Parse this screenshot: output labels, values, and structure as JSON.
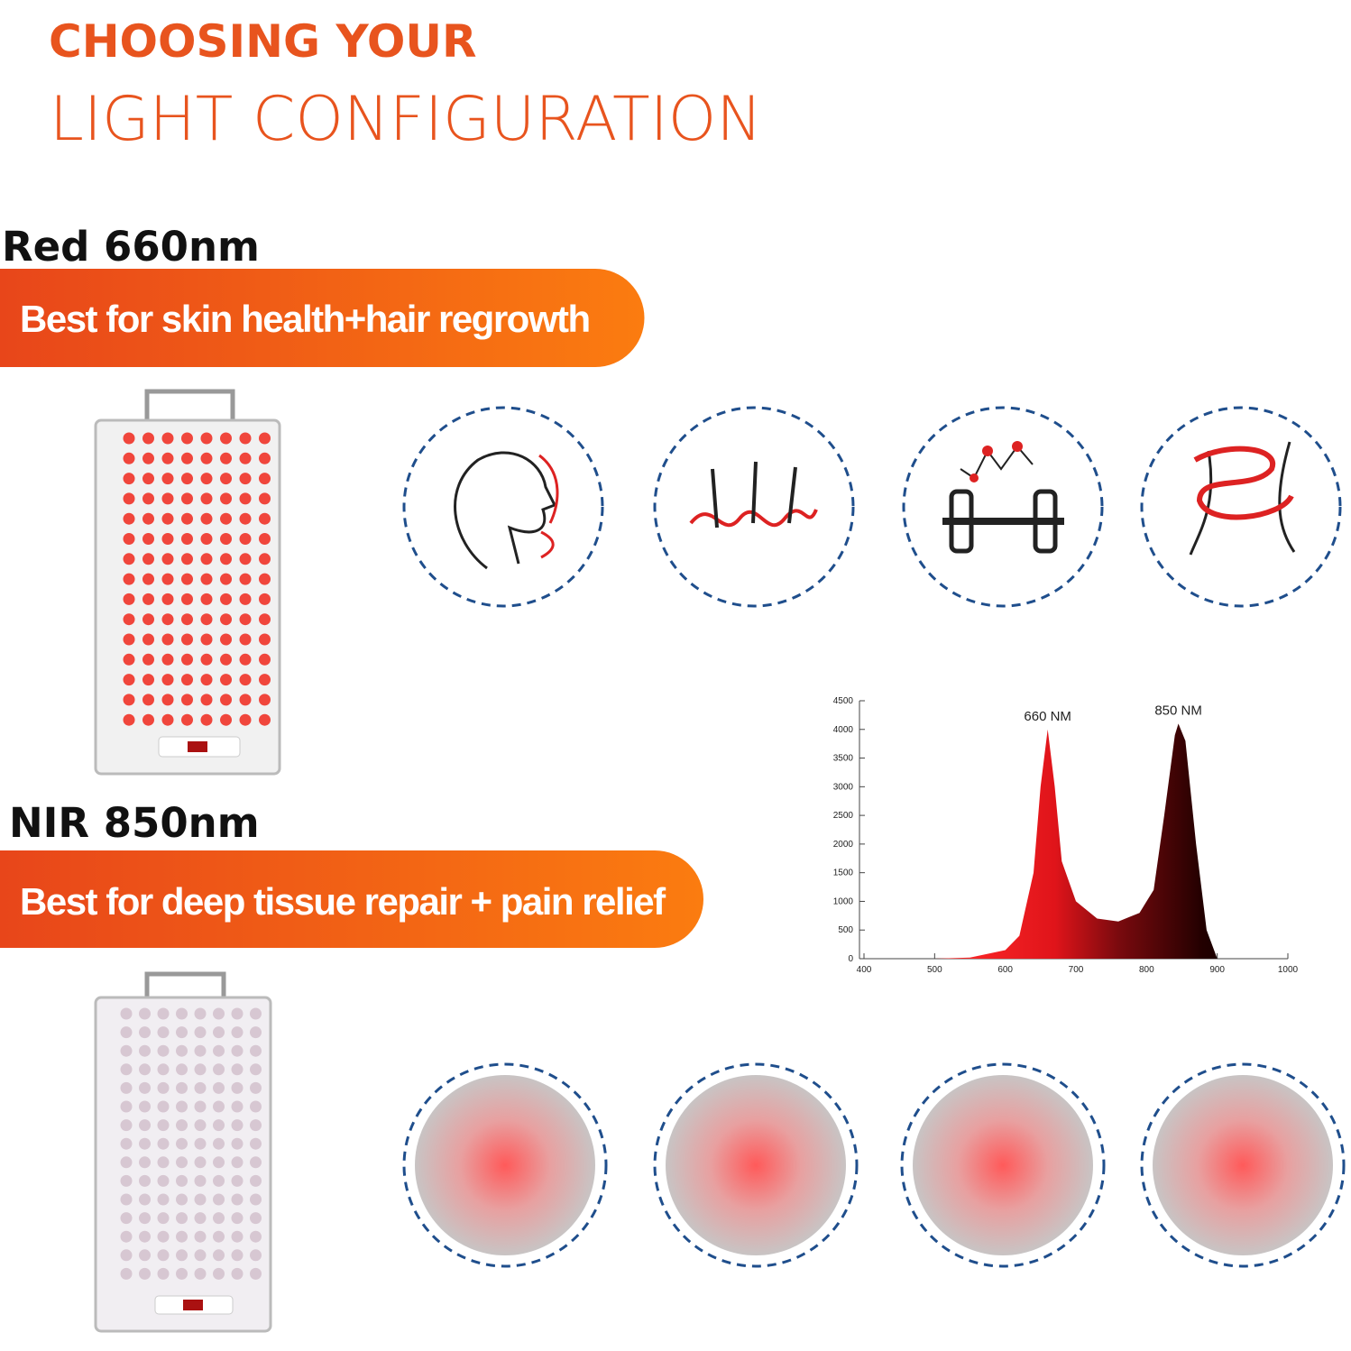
{
  "header": {
    "line1": "CHOOSING YOUR",
    "line2": "LIGHT CONFIGURATION"
  },
  "sections": [
    {
      "label": "Red 660nm",
      "banner": "Best for skin health+hair regrowth"
    },
    {
      "label": "NIR 850nm",
      "banner": "Best for deep tissue repair + pain relief"
    }
  ],
  "chart_data": {
    "type": "area",
    "x": [
      400,
      500,
      550,
      600,
      620,
      640,
      650,
      660,
      670,
      680,
      700,
      730,
      760,
      790,
      810,
      825,
      840,
      845,
      855,
      870,
      885,
      900,
      1000
    ],
    "values": [
      0,
      0,
      20,
      150,
      400,
      1500,
      3000,
      4000,
      3000,
      1700,
      1000,
      700,
      650,
      800,
      1200,
      2500,
      3900,
      4100,
      3800,
      2000,
      500,
      0,
      0
    ],
    "xlim": [
      400,
      1000
    ],
    "ylim": [
      0,
      4500
    ],
    "xticks": [
      400,
      500,
      600,
      700,
      800,
      900,
      1000
    ],
    "yticks": [
      0,
      500,
      1000,
      1500,
      2000,
      2500,
      3000,
      3500,
      4000,
      4500
    ],
    "annotations": [
      {
        "text": "660 NM",
        "x": 660
      },
      {
        "text": "850 NM",
        "x": 845
      }
    ]
  }
}
